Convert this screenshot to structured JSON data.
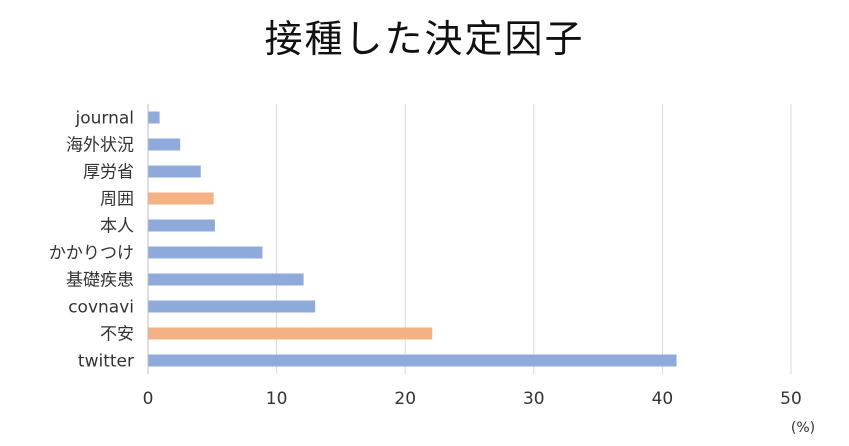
{
  "chart_data": {
    "type": "bar",
    "orientation": "horizontal",
    "title": "接種した決定因子",
    "unit": "(%)",
    "categories": [
      "journal",
      "海外状況",
      "厚労省",
      "周囲",
      "本人",
      "かかりつけ",
      "基礎疾患",
      "covnavi",
      "不安",
      "twitter"
    ],
    "values": [
      0.9,
      2.5,
      4.1,
      5.1,
      5.2,
      8.9,
      12.1,
      13.0,
      22.1,
      41.1
    ],
    "highlighted": [
      false,
      false,
      false,
      true,
      false,
      false,
      false,
      false,
      true,
      false
    ],
    "xlim": [
      0,
      50
    ],
    "xticks": [
      0,
      10,
      20,
      30,
      40,
      50
    ],
    "grid": true,
    "legend": "none",
    "colors": {
      "bar": "#8eaadb",
      "highlight": "#f4b183",
      "grid": "#d9d9d9",
      "axis": "#bfbfbf"
    }
  }
}
